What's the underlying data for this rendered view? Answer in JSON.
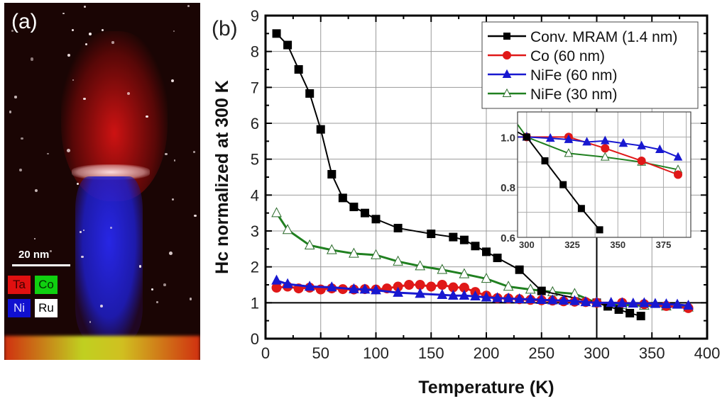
{
  "panel_a": {
    "label": "(a)",
    "scale_bar": "20 nm",
    "legend": [
      {
        "element": "Ta",
        "color": "#e01010",
        "text_color": "#400000"
      },
      {
        "element": "Co",
        "color": "#10d010",
        "text_color": "#003000"
      },
      {
        "element": "Ni",
        "color": "#1010d0",
        "text_color": "#e0e0ff"
      },
      {
        "element": "Ru",
        "color": "#ffffff",
        "text_color": "#000000"
      }
    ]
  },
  "panel_b": {
    "label": "(b)"
  },
  "chart_data": [
    {
      "type": "line",
      "title": "",
      "xlabel": "Temperature (K)",
      "ylabel": "Hc normalized at 300 K",
      "xlim": [
        0,
        400
      ],
      "ylim": [
        0,
        9
      ],
      "xticks": [
        0,
        50,
        100,
        150,
        200,
        250,
        300,
        350,
        400
      ],
      "yticks": [
        0,
        1,
        2,
        3,
        4,
        5,
        6,
        7,
        8,
        9
      ],
      "grid": true,
      "reference_lines": {
        "horizontal": 1,
        "vertical": 300
      },
      "legend_position": "top-right",
      "series": [
        {
          "name": "Conv. MRAM (1.4 nm)",
          "color": "#000000",
          "marker": "square",
          "filled": true,
          "x": [
            10,
            20,
            30,
            40,
            50,
            60,
            70,
            80,
            90,
            100,
            120,
            150,
            170,
            180,
            190,
            200,
            210,
            230,
            250,
            300,
            310,
            320,
            330,
            340
          ],
          "y": [
            8.5,
            8.18,
            7.5,
            6.83,
            5.83,
            4.58,
            3.92,
            3.67,
            3.5,
            3.33,
            3.08,
            2.92,
            2.83,
            2.75,
            2.58,
            2.42,
            2.25,
            1.92,
            1.33,
            1.0,
            0.9,
            0.81,
            0.71,
            0.63
          ]
        },
        {
          "name": "Co (60 nm)",
          "color": "#e01818",
          "marker": "circle",
          "filled": true,
          "x": [
            10,
            20,
            30,
            40,
            50,
            60,
            70,
            80,
            90,
            100,
            110,
            120,
            130,
            140,
            150,
            160,
            170,
            180,
            190,
            200,
            210,
            220,
            230,
            240,
            250,
            260,
            270,
            280,
            290,
            300,
            323,
            343,
            363,
            383
          ],
          "y": [
            1.42,
            1.45,
            1.4,
            1.42,
            1.37,
            1.4,
            1.38,
            1.37,
            1.38,
            1.37,
            1.4,
            1.45,
            1.5,
            1.5,
            1.45,
            1.5,
            1.43,
            1.42,
            1.3,
            1.2,
            1.13,
            1.12,
            1.1,
            1.08,
            1.07,
            1.06,
            1.04,
            1.03,
            1.02,
            1.0,
            1.0,
            0.96,
            0.91,
            0.85
          ]
        },
        {
          "name": "NiFe (60 nm)",
          "color": "#1818d0",
          "marker": "triangle",
          "filled": true,
          "x": [
            10,
            20,
            40,
            60,
            80,
            90,
            100,
            120,
            140,
            160,
            170,
            180,
            190,
            200,
            210,
            220,
            230,
            240,
            250,
            260,
            270,
            280,
            290,
            300,
            313,
            323,
            333,
            343,
            353,
            363,
            373,
            383
          ],
          "y": [
            1.62,
            1.52,
            1.45,
            1.43,
            1.38,
            1.37,
            1.35,
            1.28,
            1.25,
            1.22,
            1.2,
            1.2,
            1.18,
            1.15,
            1.13,
            1.12,
            1.1,
            1.1,
            1.08,
            1.07,
            1.06,
            1.05,
            1.02,
            1.0,
            1.0,
            0.99,
            0.98,
            0.99,
            0.97,
            0.96,
            0.95,
            0.92
          ]
        },
        {
          "name": "NiFe (30 nm)",
          "color": "#208020",
          "marker": "triangle",
          "filled": false,
          "x": [
            10,
            20,
            40,
            60,
            80,
            100,
            120,
            140,
            160,
            180,
            200,
            220,
            240,
            260,
            280,
            300,
            323,
            343,
            363,
            383
          ],
          "y": [
            3.5,
            3.03,
            2.6,
            2.47,
            2.37,
            2.33,
            2.15,
            2.02,
            1.92,
            1.8,
            1.67,
            1.45,
            1.37,
            1.3,
            1.25,
            1.0,
            0.94,
            0.92,
            0.9,
            0.87
          ]
        }
      ]
    },
    {
      "type": "line",
      "title": "inset",
      "xlabel": "",
      "ylabel": "",
      "xlim": [
        295,
        390
      ],
      "ylim": [
        0.6,
        1.1
      ],
      "xticks": [
        300,
        325,
        350,
        375
      ],
      "yticks": [
        0.6,
        0.8,
        1.0
      ],
      "yticklabels": [
        "0.6",
        "0.8",
        "1.0"
      ],
      "grid": true,
      "series": [
        {
          "name": "Conv. MRAM (1.4 nm)",
          "color": "#000000",
          "marker": "square",
          "filled": true,
          "x": [
            295,
            300,
            310,
            320,
            330,
            340
          ],
          "y": [
            1.02,
            1.0,
            0.905,
            0.81,
            0.715,
            0.63
          ]
        },
        {
          "name": "Co (60 nm)",
          "color": "#e01818",
          "marker": "circle",
          "filled": true,
          "x": [
            295,
            300,
            323,
            343,
            363,
            383
          ],
          "y": [
            1.0,
            1.0,
            1.0,
            0.955,
            0.905,
            0.85
          ]
        },
        {
          "name": "NiFe (60 nm)",
          "color": "#1818d0",
          "marker": "triangle",
          "filled": true,
          "x": [
            295,
            300,
            313,
            323,
            333,
            343,
            353,
            363,
            373,
            383
          ],
          "y": [
            1.0,
            1.0,
            0.995,
            0.99,
            0.98,
            0.985,
            0.975,
            0.965,
            0.95,
            0.92
          ]
        },
        {
          "name": "NiFe (30 nm)",
          "color": "#208020",
          "marker": "triangle",
          "filled": false,
          "x": [
            295,
            300,
            323,
            343,
            363,
            383
          ],
          "y": [
            1.05,
            1.0,
            0.935,
            0.92,
            0.9,
            0.87
          ]
        }
      ]
    }
  ]
}
